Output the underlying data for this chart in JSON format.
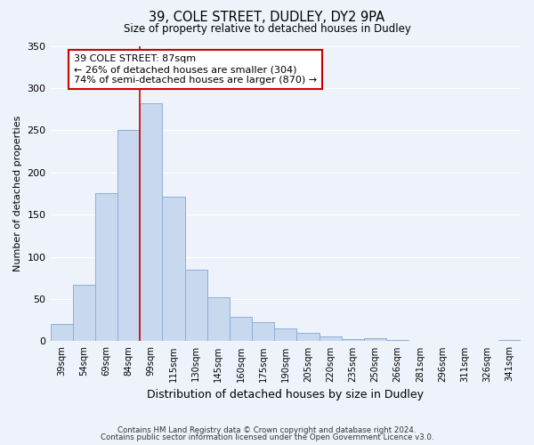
{
  "title": "39, COLE STREET, DUDLEY, DY2 9PA",
  "subtitle": "Size of property relative to detached houses in Dudley",
  "xlabel": "Distribution of detached houses by size in Dudley",
  "ylabel": "Number of detached properties",
  "bar_color": "#c8d8ef",
  "bar_edge_color": "#8eafd4",
  "background_color": "#eef2fb",
  "grid_color": "#ffffff",
  "categories": [
    "39sqm",
    "54sqm",
    "69sqm",
    "84sqm",
    "99sqm",
    "115sqm",
    "130sqm",
    "145sqm",
    "160sqm",
    "175sqm",
    "190sqm",
    "205sqm",
    "220sqm",
    "235sqm",
    "250sqm",
    "266sqm",
    "281sqm",
    "296sqm",
    "311sqm",
    "326sqm",
    "341sqm"
  ],
  "values": [
    20,
    67,
    176,
    250,
    282,
    171,
    85,
    52,
    29,
    23,
    15,
    10,
    6,
    3,
    4,
    1,
    0,
    0,
    0,
    0,
    2
  ],
  "ylim": [
    0,
    350
  ],
  "yticks": [
    0,
    50,
    100,
    150,
    200,
    250,
    300,
    350
  ],
  "vline_x_index": 3.5,
  "vline_color": "#cc0000",
  "annotation_title": "39 COLE STREET: 87sqm",
  "annotation_line1": "← 26% of detached houses are smaller (304)",
  "annotation_line2": "74% of semi-detached houses are larger (870) →",
  "annotation_box_facecolor": "#ffffff",
  "annotation_box_edgecolor": "#cc0000",
  "footer1": "Contains HM Land Registry data © Crown copyright and database right 2024.",
  "footer2": "Contains public sector information licensed under the Open Government Licence v3.0."
}
